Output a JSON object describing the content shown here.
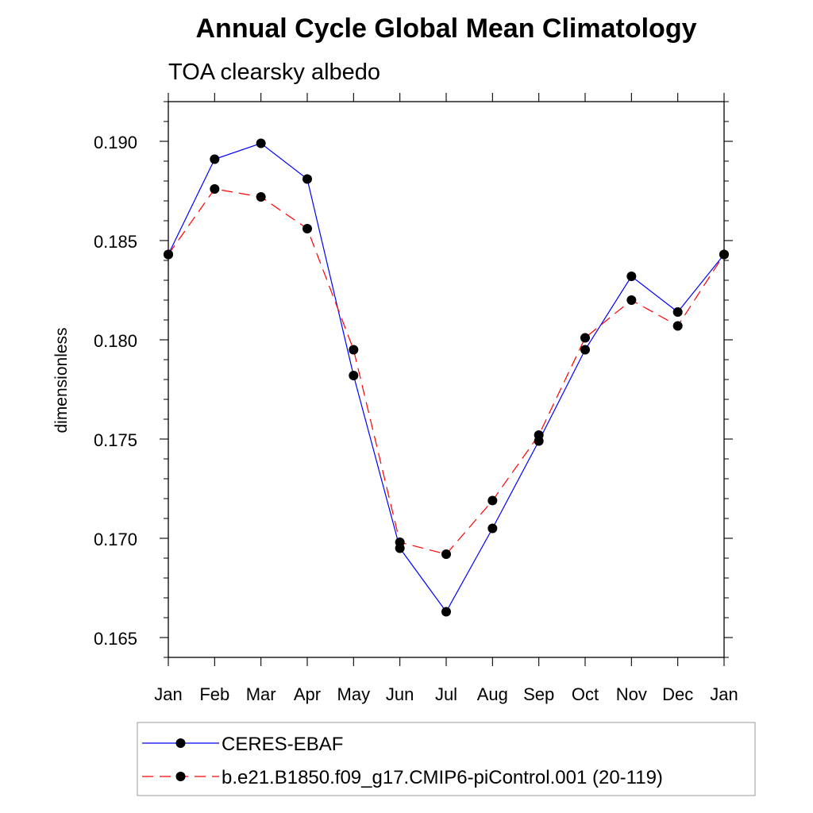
{
  "chart_data": {
    "type": "line",
    "title": "Annual Cycle Global Mean Climatology",
    "subtitle": "TOA clearsky albedo",
    "ylabel": "dimensionless",
    "xlabel": "",
    "categories": [
      "Jan",
      "Feb",
      "Mar",
      "Apr",
      "May",
      "Jun",
      "Jul",
      "Aug",
      "Sep",
      "Oct",
      "Nov",
      "Dec",
      "Jan"
    ],
    "ylim": [
      0.164,
      0.192
    ],
    "yticks": [
      "0.165",
      "0.170",
      "0.175",
      "0.180",
      "0.185",
      "0.190"
    ],
    "grid": false,
    "legend_position": "bottom",
    "series": [
      {
        "name": "CERES-EBAF",
        "color": "#0000ff",
        "dash": "solid",
        "marker": "circle",
        "values": [
          0.1843,
          0.1891,
          0.1899,
          0.1881,
          0.1782,
          0.1695,
          0.1663,
          0.1705,
          0.1749,
          0.1795,
          0.1832,
          0.1814,
          0.1843
        ]
      },
      {
        "name": "b.e21.B1850.f09_g17.CMIP6-piControl.001 (20-119)",
        "color": "#ff0000",
        "dash": "dashed",
        "marker": "circle",
        "values": [
          0.1843,
          0.1876,
          0.1872,
          0.1856,
          0.1795,
          0.1698,
          0.1692,
          0.1719,
          0.1752,
          0.1801,
          0.182,
          0.1807,
          0.1843
        ]
      }
    ]
  }
}
